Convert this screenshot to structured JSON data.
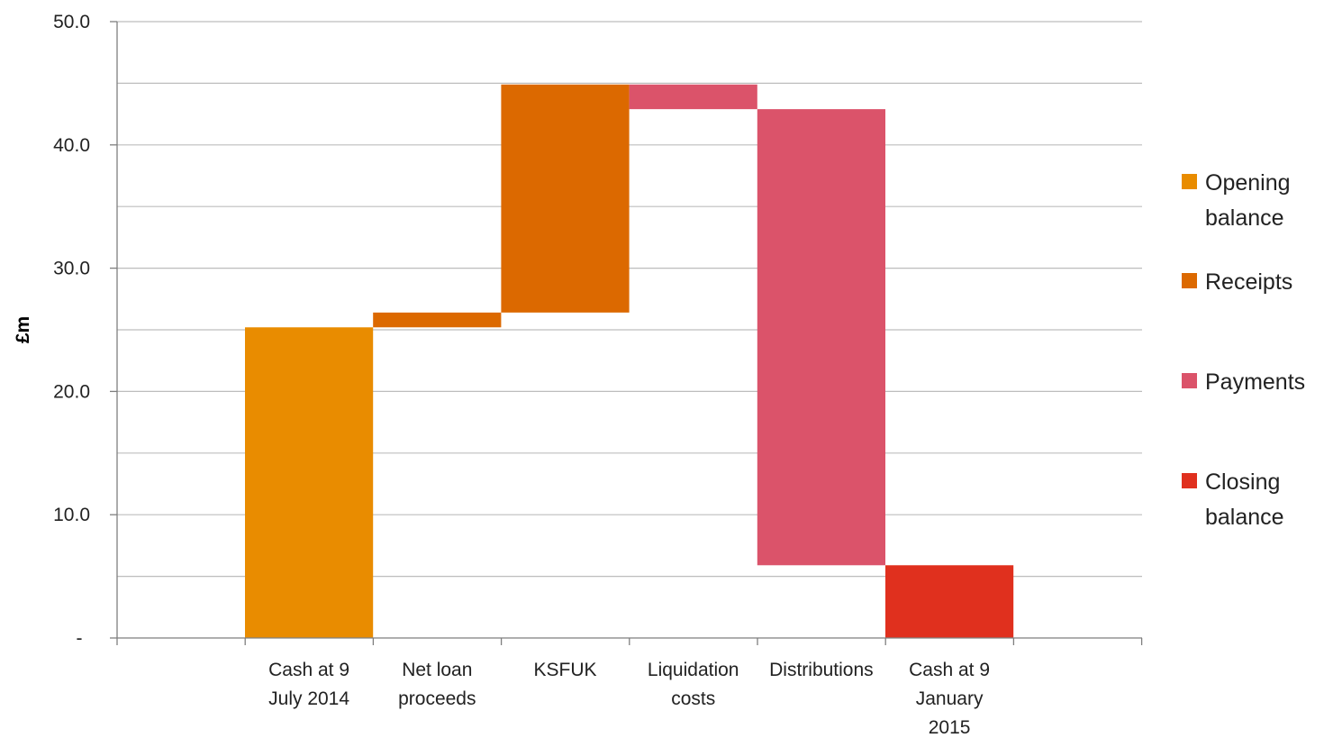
{
  "chart_data": {
    "type": "bar",
    "subtype": "waterfall",
    "ylabel": "£m",
    "ylim": [
      0,
      50
    ],
    "yticks": [
      "-",
      "10.0",
      "20.0",
      "30.0",
      "40.0",
      "50.0"
    ],
    "grid": true,
    "legend_position": "right",
    "categories": [
      [
        "Cash at 9",
        "July 2014"
      ],
      [
        "Net loan",
        "proceeds"
      ],
      [
        "KSFUK"
      ],
      [
        "Liquidation",
        "costs"
      ],
      [
        "Distributions"
      ],
      [
        "Cash at 9",
        "January",
        "2015"
      ]
    ],
    "bars": [
      {
        "category": "Cash at 9 July 2014",
        "series": "Opening balance",
        "base": 0,
        "top": 25.2
      },
      {
        "category": "Net loan proceeds",
        "series": "Receipts",
        "base": 25.2,
        "top": 26.4
      },
      {
        "category": "KSFUK",
        "series": "Receipts",
        "base": 26.4,
        "top": 44.9
      },
      {
        "category": "Liquidation costs",
        "series": "Payments",
        "base": 42.9,
        "top": 44.9
      },
      {
        "category": "Distributions",
        "series": "Payments",
        "base": 5.9,
        "top": 42.9
      },
      {
        "category": "Cash at 9 January 2015",
        "series": "Closing balance",
        "base": 0,
        "top": 5.9
      }
    ],
    "series": [
      {
        "name": [
          "Opening",
          "balance"
        ],
        "key": "Opening balance",
        "color": "#E98C00"
      },
      {
        "name": [
          "Receipts"
        ],
        "key": "Receipts",
        "color": "#DC6900"
      },
      {
        "name": [
          "Payments"
        ],
        "key": "Payments",
        "color": "#DB536A"
      },
      {
        "name": [
          "Closing",
          "balance"
        ],
        "key": "Closing balance",
        "color": "#E0301E"
      }
    ]
  }
}
